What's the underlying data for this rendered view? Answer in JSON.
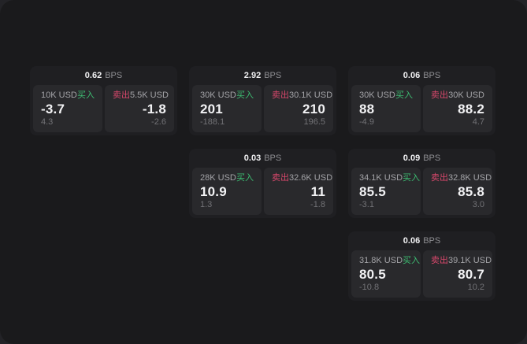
{
  "labels": {
    "bps": "BPS",
    "buy": "买入",
    "sell": "卖出"
  },
  "colors": {
    "buy_green": "#3DBD72",
    "sell_red": "#D9486C",
    "screen_bg": "#1A1A1C",
    "card_bg": "#1F1F22",
    "panel_bg": "#29292C"
  },
  "cards": [
    {
      "bps": "0.62",
      "buy": {
        "notional": "10K USD",
        "value": "-3.7",
        "sub": "4.3"
      },
      "sell": {
        "notional": "5.5K USD",
        "value": "-1.8",
        "sub": "-2.6"
      }
    },
    {
      "bps": "2.92",
      "buy": {
        "notional": "30K USD",
        "value": "201",
        "sub": "-188.1"
      },
      "sell": {
        "notional": "30.1K USD",
        "value": "210",
        "sub": "196.5"
      }
    },
    {
      "bps": "0.06",
      "buy": {
        "notional": "30K USD",
        "value": "88",
        "sub": "-4.9"
      },
      "sell": {
        "notional": "30K USD",
        "value": "88.2",
        "sub": "4.7"
      }
    },
    {
      "bps": "0.03",
      "buy": {
        "notional": "28K USD",
        "value": "10.9",
        "sub": "1.3"
      },
      "sell": {
        "notional": "32.6K USD",
        "value": "11",
        "sub": "-1.8"
      }
    },
    {
      "bps": "0.09",
      "buy": {
        "notional": "34.1K USD",
        "value": "85.5",
        "sub": "-3.1"
      },
      "sell": {
        "notional": "32.8K USD",
        "value": "85.8",
        "sub": "3.0"
      }
    },
    {
      "bps": "0.06",
      "buy": {
        "notional": "31.8K USD",
        "value": "80.5",
        "sub": "-10.8"
      },
      "sell": {
        "notional": "39.1K USD",
        "value": "80.7",
        "sub": "10.2"
      }
    }
  ]
}
